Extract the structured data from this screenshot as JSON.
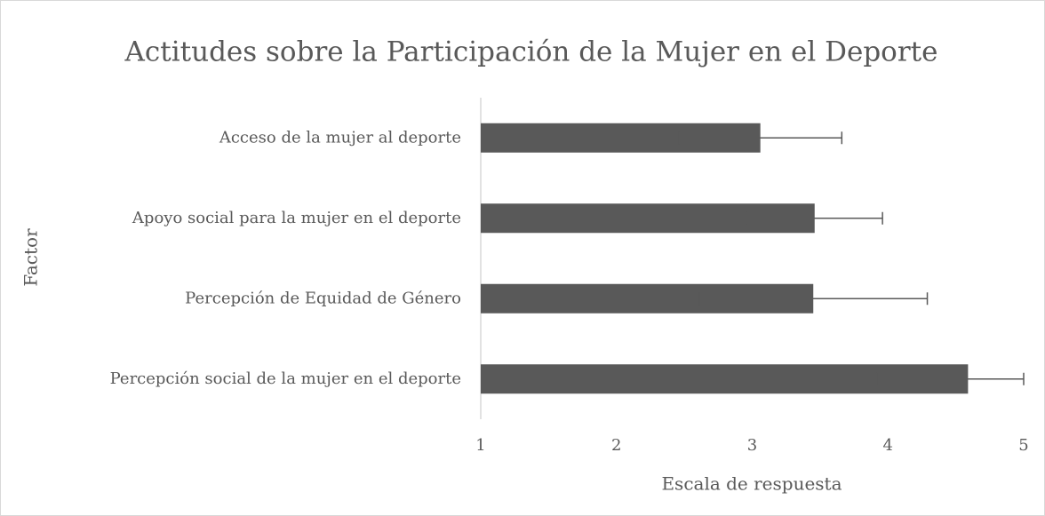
{
  "chart_data": {
    "type": "bar",
    "orientation": "horizontal",
    "title": "Actitudes sobre la Participación de la Mujer en el Deporte",
    "x_label": "Escala de respuesta",
    "y_label": "Factor",
    "categories": [
      "Acceso de la mujer al deporte",
      "Apoyo social para la mujer en el deporte",
      "Percepción de Equidad de Género",
      "Percepción social de la mujer en el deporte"
    ],
    "values": [
      3.06,
      3.46,
      3.45,
      4.59
    ],
    "errors": [
      0.6,
      0.5,
      0.84,
      0.67
    ],
    "color": "#595959",
    "xlim": [
      1,
      5
    ],
    "xticks": [
      1,
      2,
      3,
      4,
      5
    ],
    "grid": false
  }
}
